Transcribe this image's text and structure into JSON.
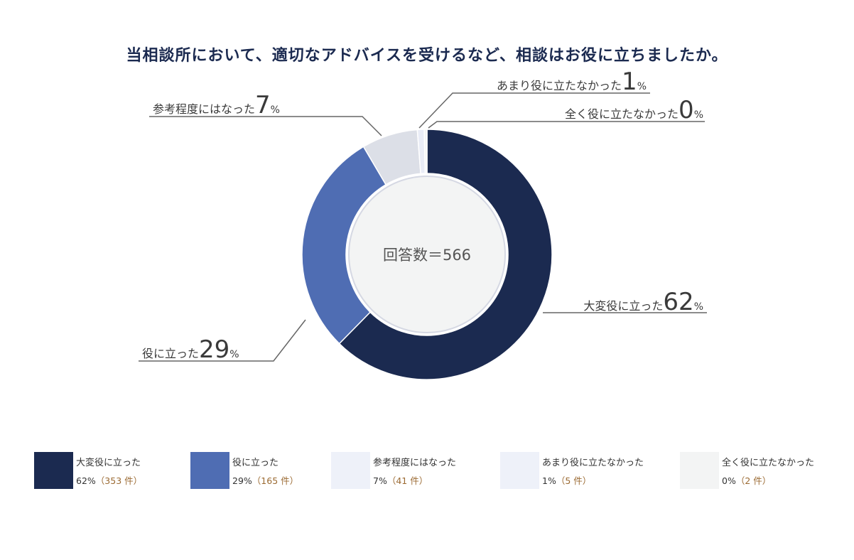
{
  "title": "当相談所において、適切なアドバイスを受けるなど、相談はお役に立ちましたか。",
  "chart_data": {
    "type": "pie",
    "center_label": "回答数＝566",
    "slices": [
      {
        "label": "大変役に立った",
        "percent_text": "62",
        "value": 353,
        "legend_percent": "62%",
        "legend_count": "（353 件）",
        "color": "#1b2a50"
      },
      {
        "label": "役に立った",
        "percent_text": "29",
        "value": 165,
        "legend_percent": "29%",
        "legend_count": "（165 件）",
        "color": "#4f6db3"
      },
      {
        "label": "参考程度にはなった",
        "percent_text": "7",
        "value": 41,
        "legend_percent": "7%",
        "legend_count": "（41 件）",
        "color": "#dcdfe7"
      },
      {
        "label": "あまり役に立たなかった",
        "percent_text": "1",
        "value": 5,
        "legend_percent": "1%",
        "legend_count": "（5 件）",
        "color": "#e9ecf6"
      },
      {
        "label": "全く役に立たなかった",
        "percent_text": "0",
        "value": 2,
        "legend_percent": "0%",
        "legend_count": "（2 件）",
        "color": "#f3f4f4"
      }
    ],
    "percent_sign": "%"
  },
  "legend_colors": [
    "#1b2a50",
    "#4f6db3",
    "#eef1f9",
    "#eef1f9",
    "#f3f4f4"
  ]
}
